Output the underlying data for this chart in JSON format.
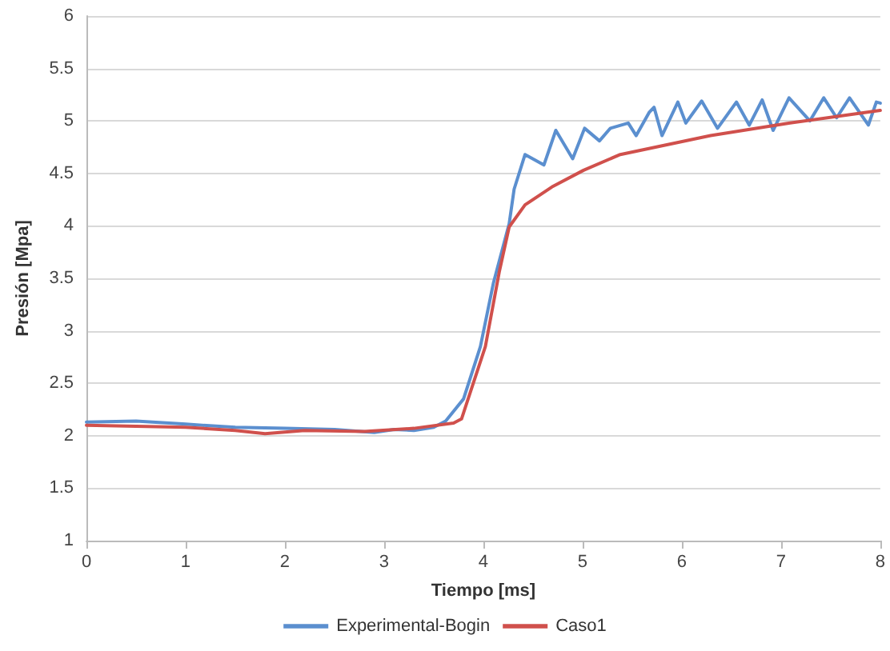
{
  "chart_data": {
    "type": "line",
    "xlabel": "Tiempo [ms]",
    "ylabel": "Presión [Mpa]",
    "xlim": [
      0,
      8
    ],
    "xticks": [
      0,
      1,
      2,
      3,
      4,
      5,
      6,
      7,
      8
    ],
    "ylim": [
      1,
      6
    ],
    "yticks": [
      1,
      1.5,
      2,
      2.5,
      3,
      3.5,
      4,
      4.5,
      5,
      5.5,
      6
    ],
    "grid": "y",
    "legend": "bottom",
    "marker": "none",
    "line_style": "solid",
    "series": [
      {
        "name": "Experimental-Bogin",
        "color": "#5b8fcf",
        "x": [
          0,
          0.5,
          1,
          1.5,
          2,
          2.5,
          2.9,
          3.1,
          3.3,
          3.5,
          3.62,
          3.8,
          3.97,
          4.1,
          4.26,
          4.31,
          4.42,
          4.61,
          4.73,
          4.9,
          5.02,
          5.17,
          5.28,
          5.46,
          5.54,
          5.67,
          5.72,
          5.8,
          5.96,
          6.04,
          6.2,
          6.36,
          6.55,
          6.68,
          6.81,
          6.92,
          7.08,
          7.29,
          7.43,
          7.56,
          7.69,
          7.88,
          7.96,
          8.0
        ],
        "values": [
          2.13,
          2.14,
          2.11,
          2.08,
          2.07,
          2.06,
          2.03,
          2.06,
          2.05,
          2.08,
          2.14,
          2.35,
          2.85,
          3.45,
          4.02,
          4.35,
          4.68,
          4.58,
          4.91,
          4.64,
          4.93,
          4.81,
          4.93,
          4.98,
          4.86,
          5.08,
          5.13,
          4.86,
          5.18,
          4.98,
          5.19,
          4.93,
          5.18,
          4.96,
          5.2,
          4.91,
          5.22,
          5.0,
          5.22,
          5.03,
          5.22,
          4.96,
          5.18,
          5.17
        ]
      },
      {
        "name": "Caso1",
        "color": "#d0504c",
        "x": [
          0,
          1,
          1.5,
          1.8,
          2.2,
          2.8,
          3.3,
          3.7,
          3.78,
          4.02,
          4.16,
          4.26,
          4.42,
          4.69,
          5.01,
          5.38,
          6.29,
          7.09,
          8.0
        ],
        "values": [
          2.1,
          2.08,
          2.05,
          2.02,
          2.05,
          2.04,
          2.07,
          2.12,
          2.16,
          2.85,
          3.56,
          3.99,
          4.2,
          4.37,
          4.53,
          4.68,
          4.86,
          4.98,
          5.1
        ]
      }
    ]
  }
}
